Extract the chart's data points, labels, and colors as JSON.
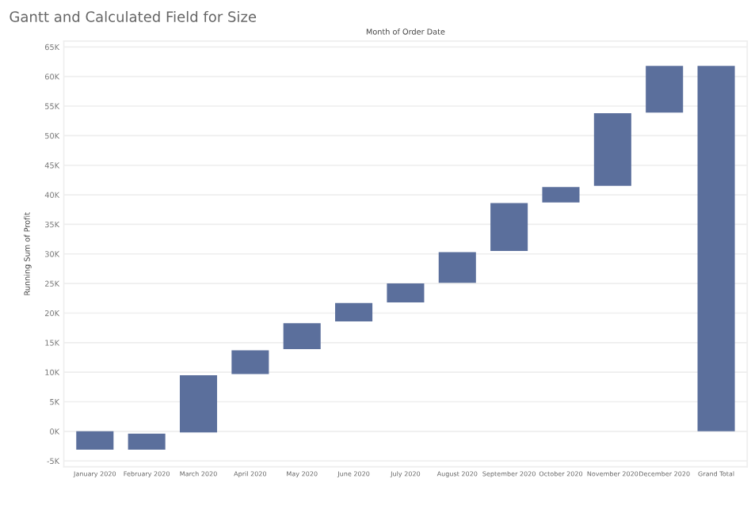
{
  "chart_data": {
    "type": "bar",
    "title": "Gantt and Calculated Field for Size",
    "xlabel": "Month of Order Date",
    "ylabel": "Running Sum of Profit",
    "categories": [
      "January 2020",
      "February 2020",
      "March 2020",
      "April 2020",
      "May 2020",
      "June 2020",
      "July 2020",
      "August 2020",
      "September 2020",
      "October 2020",
      "November 2020",
      "December 2020",
      "Grand Total"
    ],
    "base": [
      -3100,
      -3100,
      -200,
      9700,
      13900,
      18600,
      21800,
      25100,
      30500,
      38700,
      41500,
      53900,
      0
    ],
    "values": [
      3100,
      2700,
      9700,
      4000,
      4400,
      3100,
      3200,
      5200,
      8100,
      2600,
      12300,
      7900,
      61800
    ],
    "color": "#5b6f9c",
    "ylim": [
      -6000,
      66000
    ],
    "yticks": [
      {
        "value": -5000,
        "label": "-5K"
      },
      {
        "value": 0,
        "label": "0K"
      },
      {
        "value": 5000,
        "label": "5K"
      },
      {
        "value": 10000,
        "label": "10K"
      },
      {
        "value": 15000,
        "label": "15K"
      },
      {
        "value": 20000,
        "label": "20K"
      },
      {
        "value": 25000,
        "label": "25K"
      },
      {
        "value": 30000,
        "label": "30K"
      },
      {
        "value": 35000,
        "label": "35K"
      },
      {
        "value": 40000,
        "label": "40K"
      },
      {
        "value": 45000,
        "label": "45K"
      },
      {
        "value": 50000,
        "label": "50K"
      },
      {
        "value": 55000,
        "label": "55K"
      },
      {
        "value": 60000,
        "label": "60K"
      },
      {
        "value": 65000,
        "label": "65K"
      }
    ],
    "grid": "y"
  }
}
